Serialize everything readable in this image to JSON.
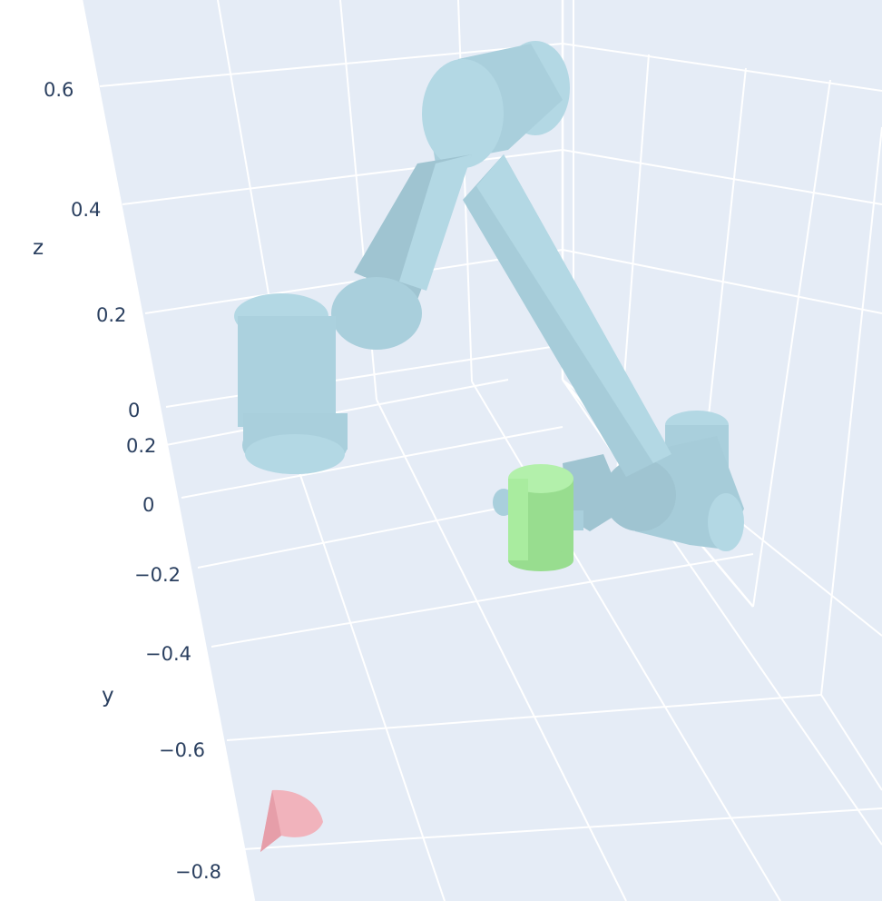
{
  "axes": {
    "z": {
      "title": "z",
      "ticks": [
        "0.6",
        "0.4",
        "0.2",
        "0"
      ]
    },
    "y": {
      "title": "y",
      "ticks": [
        "0.2",
        "0",
        "−0.2",
        "−0.4",
        "−0.6",
        "−0.8"
      ]
    }
  },
  "scene": {
    "background_color": "#e5ecf6",
    "grid_color": "#ffffff",
    "robot_color": "#b3d8e4",
    "robot_shade_color": "#9fc4d1",
    "object_color": "#a2e89a",
    "cone_color": "#f1b3bc"
  },
  "objects": [
    {
      "name": "robot-arm",
      "color": "#b3d8e4"
    },
    {
      "name": "green-cylinder",
      "color": "#a2e89a"
    },
    {
      "name": "pink-cone",
      "color": "#f1b3bc"
    }
  ]
}
